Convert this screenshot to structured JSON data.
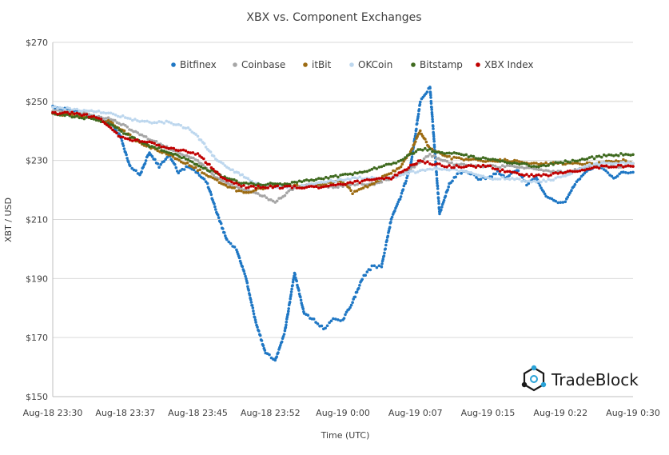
{
  "chart_data": {
    "type": "scatter",
    "title": "XBX vs. Component Exchanges",
    "xlabel": "Time (UTC)",
    "ylabel": "XBT / USD",
    "x_ticks": [
      "Aug-18 23:30",
      "Aug-18 23:37",
      "Aug-18 23:45",
      "Aug-18 23:52",
      "Aug-19 0:00",
      "Aug-19 0:07",
      "Aug-19 0:15",
      "Aug-19 0:22",
      "Aug-19 0:30"
    ],
    "y_ticks": [
      "$150",
      "$170",
      "$190",
      "$210",
      "$230",
      "$250",
      "$270"
    ],
    "ylim": [
      150,
      270
    ],
    "xlim": [
      "Aug-18 23:30",
      "Aug-19 0:30"
    ],
    "grid": "horizontal",
    "legend_position": "top",
    "series": [
      {
        "name": "Bitfinex",
        "color": "#1f77c4",
        "points": [
          [
            "23:30",
            248
          ],
          [
            "23:32",
            247
          ],
          [
            "23:34",
            245
          ],
          [
            "23:35",
            244
          ],
          [
            "23:36",
            243
          ],
          [
            "23:37",
            238
          ],
          [
            "23:38",
            228
          ],
          [
            "23:39",
            225
          ],
          [
            "23:40",
            233
          ],
          [
            "23:41",
            228
          ],
          [
            "23:42",
            232
          ],
          [
            "23:43",
            226
          ],
          [
            "23:44",
            228
          ],
          [
            "23:45",
            226
          ],
          [
            "23:46",
            222
          ],
          [
            "23:47",
            212
          ],
          [
            "23:48",
            203
          ],
          [
            "23:49",
            200
          ],
          [
            "23:50",
            190
          ],
          [
            "23:51",
            175
          ],
          [
            "23:52",
            165
          ],
          [
            "23:53",
            162
          ],
          [
            "23:54",
            172
          ],
          [
            "23:55",
            192
          ],
          [
            "23:56",
            178
          ],
          [
            "23:57",
            176
          ],
          [
            "23:58",
            173
          ],
          [
            "23:59",
            176
          ],
          [
            "0:00",
            176
          ],
          [
            "0:01",
            182
          ],
          [
            "0:02",
            190
          ],
          [
            "0:03",
            194
          ],
          [
            "0:04",
            194
          ],
          [
            "0:05",
            210
          ],
          [
            "0:06",
            218
          ],
          [
            "0:07",
            228
          ],
          [
            "0:08",
            250
          ],
          [
            "0:09",
            255
          ],
          [
            "0:10",
            212
          ],
          [
            "0:11",
            222
          ],
          [
            "0:12",
            226
          ],
          [
            "0:13",
            226
          ],
          [
            "0:14",
            224
          ],
          [
            "0:15",
            224
          ],
          [
            "0:16",
            226
          ],
          [
            "0:17",
            224
          ],
          [
            "0:18",
            227
          ],
          [
            "0:19",
            222
          ],
          [
            "0:20",
            224
          ],
          [
            "0:21",
            218
          ],
          [
            "0:22",
            216
          ],
          [
            "0:23",
            216
          ],
          [
            "0:24",
            222
          ],
          [
            "0:25",
            226
          ],
          [
            "0:26",
            228
          ],
          [
            "0:27",
            227
          ],
          [
            "0:28",
            224
          ],
          [
            "0:29",
            226
          ],
          [
            "0:30",
            226
          ]
        ]
      },
      {
        "name": "Coinbase",
        "color": "#a6a6a6",
        "points": [
          [
            "23:30",
            247
          ],
          [
            "23:33",
            246
          ],
          [
            "23:36",
            244
          ],
          [
            "23:39",
            239
          ],
          [
            "23:42",
            234
          ],
          [
            "23:45",
            230
          ],
          [
            "23:47",
            224
          ],
          [
            "23:49",
            221
          ],
          [
            "23:51",
            219
          ],
          [
            "23:53",
            216
          ],
          [
            "23:55",
            221
          ],
          [
            "23:57",
            222
          ],
          [
            "23:59",
            221
          ],
          [
            "0:01",
            222
          ],
          [
            "0:03",
            222
          ],
          [
            "0:05",
            224
          ],
          [
            "0:07",
            227
          ],
          [
            "0:09",
            232
          ],
          [
            "0:11",
            229
          ],
          [
            "0:14",
            228
          ],
          [
            "0:17",
            228
          ],
          [
            "0:20",
            227
          ],
          [
            "0:23",
            226
          ],
          [
            "0:26",
            228
          ],
          [
            "0:29",
            228
          ],
          [
            "0:30",
            228
          ]
        ]
      },
      {
        "name": "itBit",
        "color": "#9c6b12",
        "points": [
          [
            "23:30",
            246
          ],
          [
            "23:33",
            245
          ],
          [
            "23:36",
            243
          ],
          [
            "23:39",
            236
          ],
          [
            "23:42",
            232
          ],
          [
            "23:45",
            227
          ],
          [
            "23:47",
            223
          ],
          [
            "23:49",
            220
          ],
          [
            "23:50",
            219
          ],
          [
            "23:52",
            221
          ],
          [
            "23:54",
            222
          ],
          [
            "23:56",
            221
          ],
          [
            "23:58",
            222
          ],
          [
            "0:00",
            223
          ],
          [
            "0:01",
            219
          ],
          [
            "0:03",
            222
          ],
          [
            "0:05",
            226
          ],
          [
            "0:06",
            228
          ],
          [
            "0:07",
            233
          ],
          [
            "0:08",
            240
          ],
          [
            "0:09",
            234
          ],
          [
            "0:11",
            231
          ],
          [
            "0:14",
            230
          ],
          [
            "0:17",
            230
          ],
          [
            "0:20",
            229
          ],
          [
            "0:23",
            229
          ],
          [
            "0:26",
            229
          ],
          [
            "0:29",
            230
          ],
          [
            "0:30",
            229
          ]
        ]
      },
      {
        "name": "OKCoin",
        "color": "#bdd7ee",
        "points": [
          [
            "23:30",
            248
          ],
          [
            "23:33",
            247
          ],
          [
            "23:36",
            246
          ],
          [
            "23:38",
            244
          ],
          [
            "23:40",
            243
          ],
          [
            "23:42",
            243
          ],
          [
            "23:43",
            242
          ],
          [
            "23:44",
            241
          ],
          [
            "23:45",
            238
          ],
          [
            "23:46",
            234
          ],
          [
            "23:47",
            230
          ],
          [
            "23:48",
            228
          ],
          [
            "23:49",
            226
          ],
          [
            "23:50",
            224
          ],
          [
            "23:51",
            222
          ],
          [
            "23:53",
            221
          ],
          [
            "23:55",
            221
          ],
          [
            "23:57",
            222
          ],
          [
            "23:59",
            223
          ],
          [
            "0:01",
            224
          ],
          [
            "0:03",
            224
          ],
          [
            "0:05",
            224
          ],
          [
            "0:07",
            226
          ],
          [
            "0:09",
            227
          ],
          [
            "0:11",
            227
          ],
          [
            "0:13",
            226
          ],
          [
            "0:15",
            224
          ],
          [
            "0:17",
            224
          ],
          [
            "0:19",
            223
          ],
          [
            "0:21",
            223
          ],
          [
            "0:23",
            225
          ],
          [
            "0:25",
            228
          ],
          [
            "0:27",
            229
          ],
          [
            "0:29",
            229
          ],
          [
            "0:30",
            229
          ]
        ]
      },
      {
        "name": "Bitstamp",
        "color": "#3f6a1f",
        "points": [
          [
            "23:30",
            246
          ],
          [
            "23:32",
            245
          ],
          [
            "23:34",
            244
          ],
          [
            "23:36",
            242
          ],
          [
            "23:38",
            238
          ],
          [
            "23:40",
            235
          ],
          [
            "23:42",
            233
          ],
          [
            "23:44",
            230
          ],
          [
            "23:46",
            227
          ],
          [
            "23:48",
            224
          ],
          [
            "23:50",
            222
          ],
          [
            "23:52",
            222
          ],
          [
            "23:54",
            222
          ],
          [
            "23:56",
            223
          ],
          [
            "23:58",
            224
          ],
          [
            "0:00",
            225
          ],
          [
            "0:02",
            226
          ],
          [
            "0:04",
            228
          ],
          [
            "0:06",
            230
          ],
          [
            "0:08",
            234
          ],
          [
            "0:10",
            233
          ],
          [
            "0:12",
            232
          ],
          [
            "0:14",
            231
          ],
          [
            "0:16",
            230
          ],
          [
            "0:18",
            229
          ],
          [
            "0:20",
            228
          ],
          [
            "0:22",
            229
          ],
          [
            "0:24",
            230
          ],
          [
            "0:26",
            231
          ],
          [
            "0:28",
            232
          ],
          [
            "0:30",
            232
          ]
        ]
      },
      {
        "name": "XBX Index",
        "color": "#c00000",
        "points": [
          [
            "23:30",
            246
          ],
          [
            "23:32",
            246
          ],
          [
            "23:34",
            245
          ],
          [
            "23:35",
            244
          ],
          [
            "23:36",
            241
          ],
          [
            "23:37",
            238
          ],
          [
            "23:38",
            237
          ],
          [
            "23:40",
            236
          ],
          [
            "23:42",
            234
          ],
          [
            "23:44",
            233
          ],
          [
            "23:45",
            232
          ],
          [
            "23:46",
            229
          ],
          [
            "23:47",
            226
          ],
          [
            "23:48",
            223
          ],
          [
            "23:49",
            222
          ],
          [
            "23:50",
            221
          ],
          [
            "23:52",
            221
          ],
          [
            "23:54",
            221
          ],
          [
            "23:56",
            221
          ],
          [
            "23:58",
            221
          ],
          [
            "0:00",
            222
          ],
          [
            "0:02",
            223
          ],
          [
            "0:04",
            224
          ],
          [
            "0:05",
            224
          ],
          [
            "0:06",
            226
          ],
          [
            "0:07",
            228
          ],
          [
            "0:08",
            230
          ],
          [
            "0:09",
            229
          ],
          [
            "0:11",
            228
          ],
          [
            "0:13",
            228
          ],
          [
            "0:15",
            228
          ],
          [
            "0:17",
            226
          ],
          [
            "0:19",
            225
          ],
          [
            "0:21",
            225
          ],
          [
            "0:23",
            226
          ],
          [
            "0:25",
            227
          ],
          [
            "0:27",
            228
          ],
          [
            "0:29",
            228
          ],
          [
            "0:30",
            228
          ]
        ]
      }
    ]
  },
  "watermark": {
    "text": "TradeBlock",
    "logo_color": "#1a1a1a",
    "accent_color": "#2aa3d8"
  }
}
